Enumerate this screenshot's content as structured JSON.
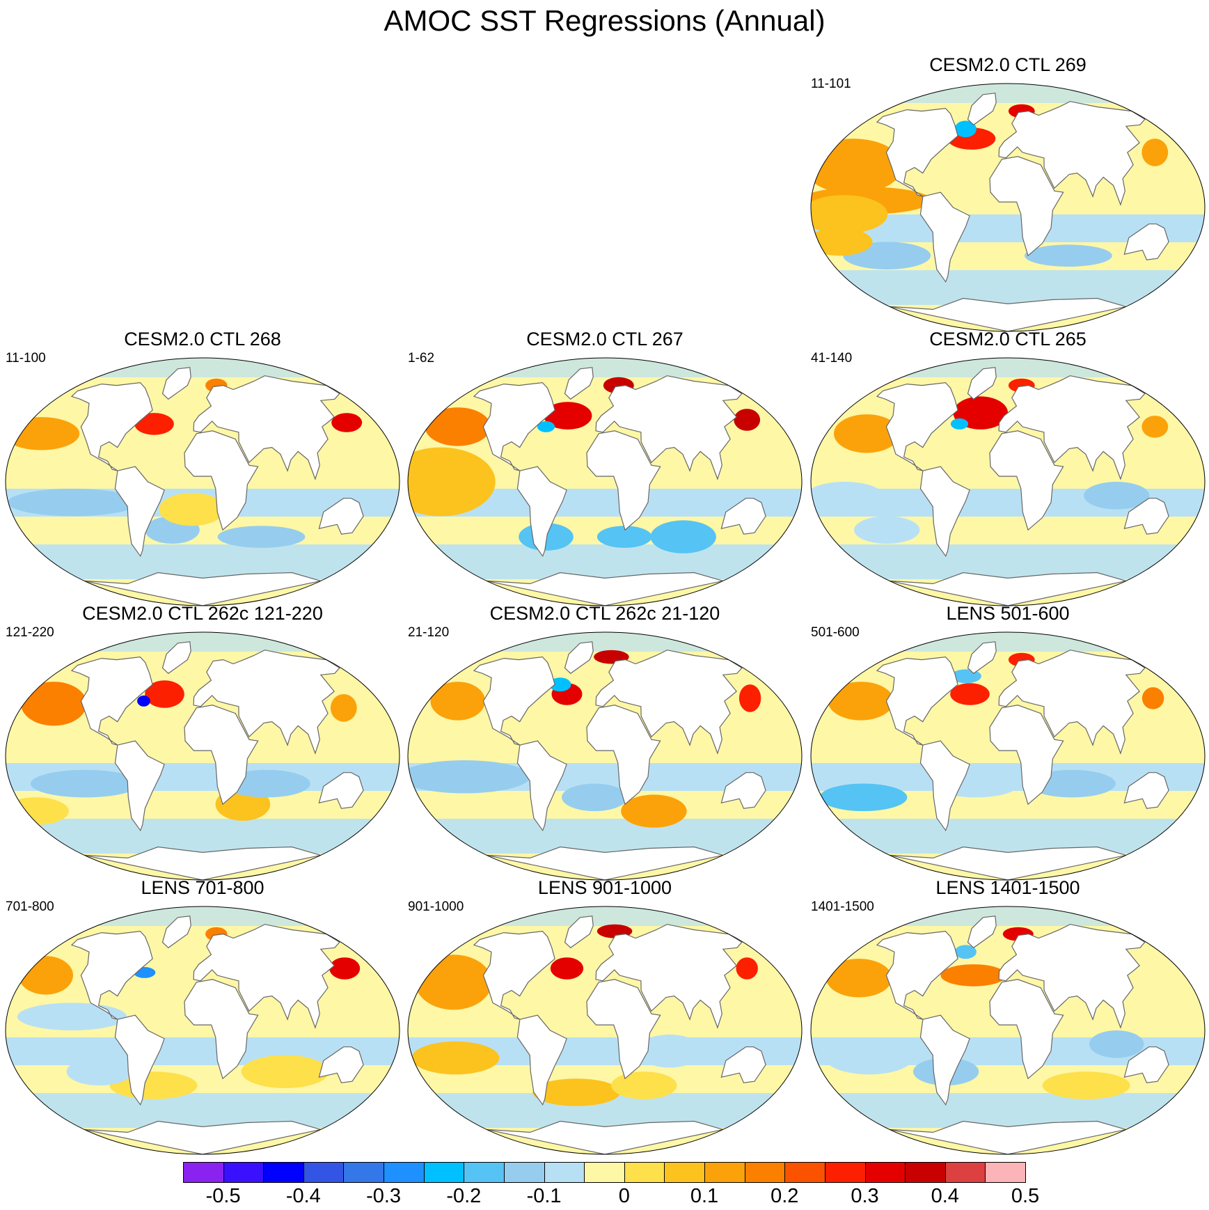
{
  "title": "AMOC SST Regressions (Annual)",
  "panels": [
    {
      "title": "CESM2.0 CTL 269",
      "years": "11-101",
      "pattern": 0
    },
    {
      "title": "CESM2.0 CTL 268",
      "years": "11-100",
      "pattern": 1
    },
    {
      "title": "CESM2.0 CTL 267",
      "years": "1-62",
      "pattern": 2
    },
    {
      "title": "CESM2.0 CTL 265",
      "years": "41-140",
      "pattern": 3
    },
    {
      "title": "CESM2.0 CTL 262c 121-220",
      "years": "121-220",
      "pattern": 4
    },
    {
      "title": "CESM2.0 CTL 262c 21-120",
      "years": "21-120",
      "pattern": 5
    },
    {
      "title": "LENS 501-600",
      "years": "501-600",
      "pattern": 6
    },
    {
      "title": "LENS 701-800",
      "years": "701-800",
      "pattern": 7
    },
    {
      "title": "LENS 901-1000",
      "years": "901-1000",
      "pattern": 8
    },
    {
      "title": "LENS 1401-1500",
      "years": "1401-1500",
      "pattern": 9
    }
  ],
  "colorbar": {
    "colors": [
      "#8a22f0",
      "#3a10ff",
      "#0000ff",
      "#3355e6",
      "#3377e8",
      "#1e90ff",
      "#00c0ff",
      "#55c3f4",
      "#96cdee",
      "#b8e0f5",
      "#fdf7a6",
      "#fde04a",
      "#fcc21e",
      "#fba20a",
      "#fb8000",
      "#fb5200",
      "#fc2000",
      "#e50000",
      "#c80000",
      "#dc4040",
      "#fbb4b8"
    ],
    "labels": [
      "-0.5",
      "-0.4",
      "-0.3",
      "-0.2",
      "-0.1",
      "0",
      "0.1",
      "0.2",
      "0.3",
      "0.4",
      "0.5"
    ]
  }
}
